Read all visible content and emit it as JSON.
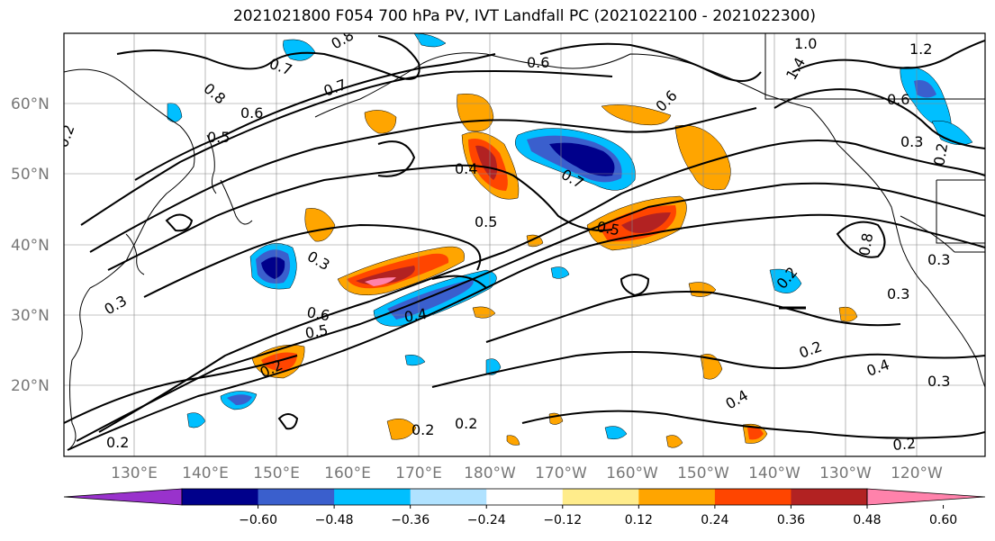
{
  "title": "2021021800 F054 700 hPa PV, IVT Landfall PC (2021022100 - 2021022300)",
  "lat_labels": [
    "60°N",
    "50°N",
    "40°N",
    "30°N",
    "20°N"
  ],
  "lon_labels": [
    "130°E",
    "140°E",
    "150°E",
    "160°E",
    "170°E",
    "180°W",
    "170°W",
    "160°W",
    "150°W",
    "140°W",
    "130°W",
    "120°W"
  ],
  "colorbar": {
    "colors": [
      "#9932CC",
      "#00008B",
      "#3A5FCD",
      "#00BFFF",
      "#B0E2FF",
      "#FFFFFF",
      "#FFEC8B",
      "#FFA500",
      "#FF4500",
      "#B22222",
      "#FF82AB"
    ],
    "tick_labels": [
      "−0.60",
      "−0.48",
      "−0.36",
      "−0.24",
      "−0.12",
      "0.12",
      "0.24",
      "0.36",
      "0.48",
      "0.60"
    ]
  },
  "contour_labels": [
    "0.8",
    "0.7",
    "0.6",
    "0.8",
    "0.7",
    "0.6",
    "0.5",
    "0.4",
    "0.5",
    "0.7",
    "0.5",
    "0.3",
    "0.6",
    "0.5",
    "0.4",
    "0.2",
    "0.2",
    "0.2",
    "0.2",
    "0.4",
    "0.3",
    "0.2",
    "0.3",
    "0.3",
    "0.2",
    "0.4",
    "0.3",
    "0.2",
    "1.0",
    "1.2",
    "1.4",
    "0.6",
    "0.3",
    "0.8",
    "0.2",
    "0.2",
    "0.6"
  ]
}
